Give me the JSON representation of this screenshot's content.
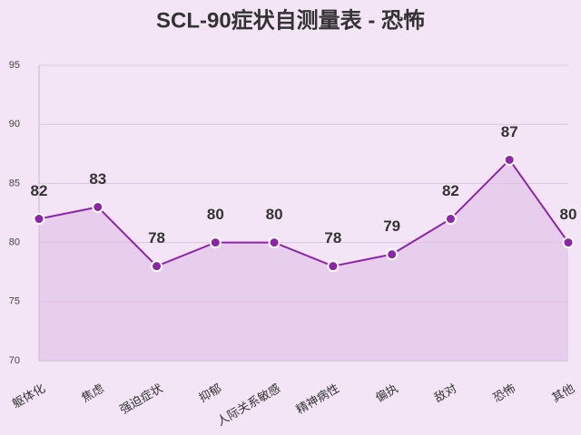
{
  "chart_data": {
    "type": "line",
    "title": "SCL-90症状自测量表 - 恐怖",
    "categories": [
      "躯体化",
      "焦虑",
      "强迫症状",
      "抑郁",
      "人际关系敏感",
      "精神病性",
      "偏执",
      "敌对",
      "恐怖",
      "其他"
    ],
    "values": [
      82,
      83,
      78,
      80,
      80,
      78,
      79,
      82,
      87,
      80
    ],
    "color": "#8e24aa",
    "fill": "#e1bee7",
    "ylim": [
      70,
      95
    ],
    "yticks": [
      70,
      75,
      80,
      85,
      90,
      95
    ],
    "grid": true
  }
}
